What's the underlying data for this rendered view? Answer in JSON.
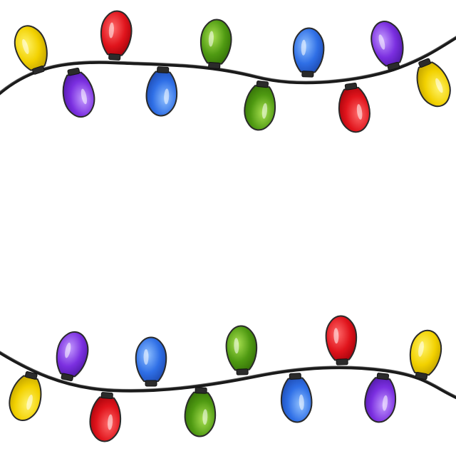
{
  "colors": {
    "background": "#ffffff",
    "wire": "#1a1a1a",
    "yellow": {
      "base": "#f2d100",
      "light": "#fff36a",
      "dark": "#b89a00"
    },
    "red": {
      "base": "#e0141c",
      "light": "#ff6a6a",
      "dark": "#9c0008"
    },
    "green": {
      "base": "#4f9a12",
      "light": "#a8e050",
      "dark": "#2f6a05"
    },
    "blue": {
      "base": "#2f6fe6",
      "light": "#8fc0ff",
      "dark": "#1a44a8"
    },
    "purple": {
      "base": "#7b2fe0",
      "light": "#c49bff",
      "dark": "#4a16a0"
    }
  },
  "strands": [
    {
      "name": "top-strand",
      "bulbs": [
        "yellow",
        "purple",
        "red",
        "blue",
        "green",
        "green",
        "blue",
        "red",
        "purple",
        "yellow"
      ]
    },
    {
      "name": "bottom-strand",
      "bulbs": [
        "yellow",
        "purple",
        "red",
        "blue",
        "green",
        "green",
        "blue",
        "red",
        "purple",
        "yellow"
      ]
    }
  ]
}
